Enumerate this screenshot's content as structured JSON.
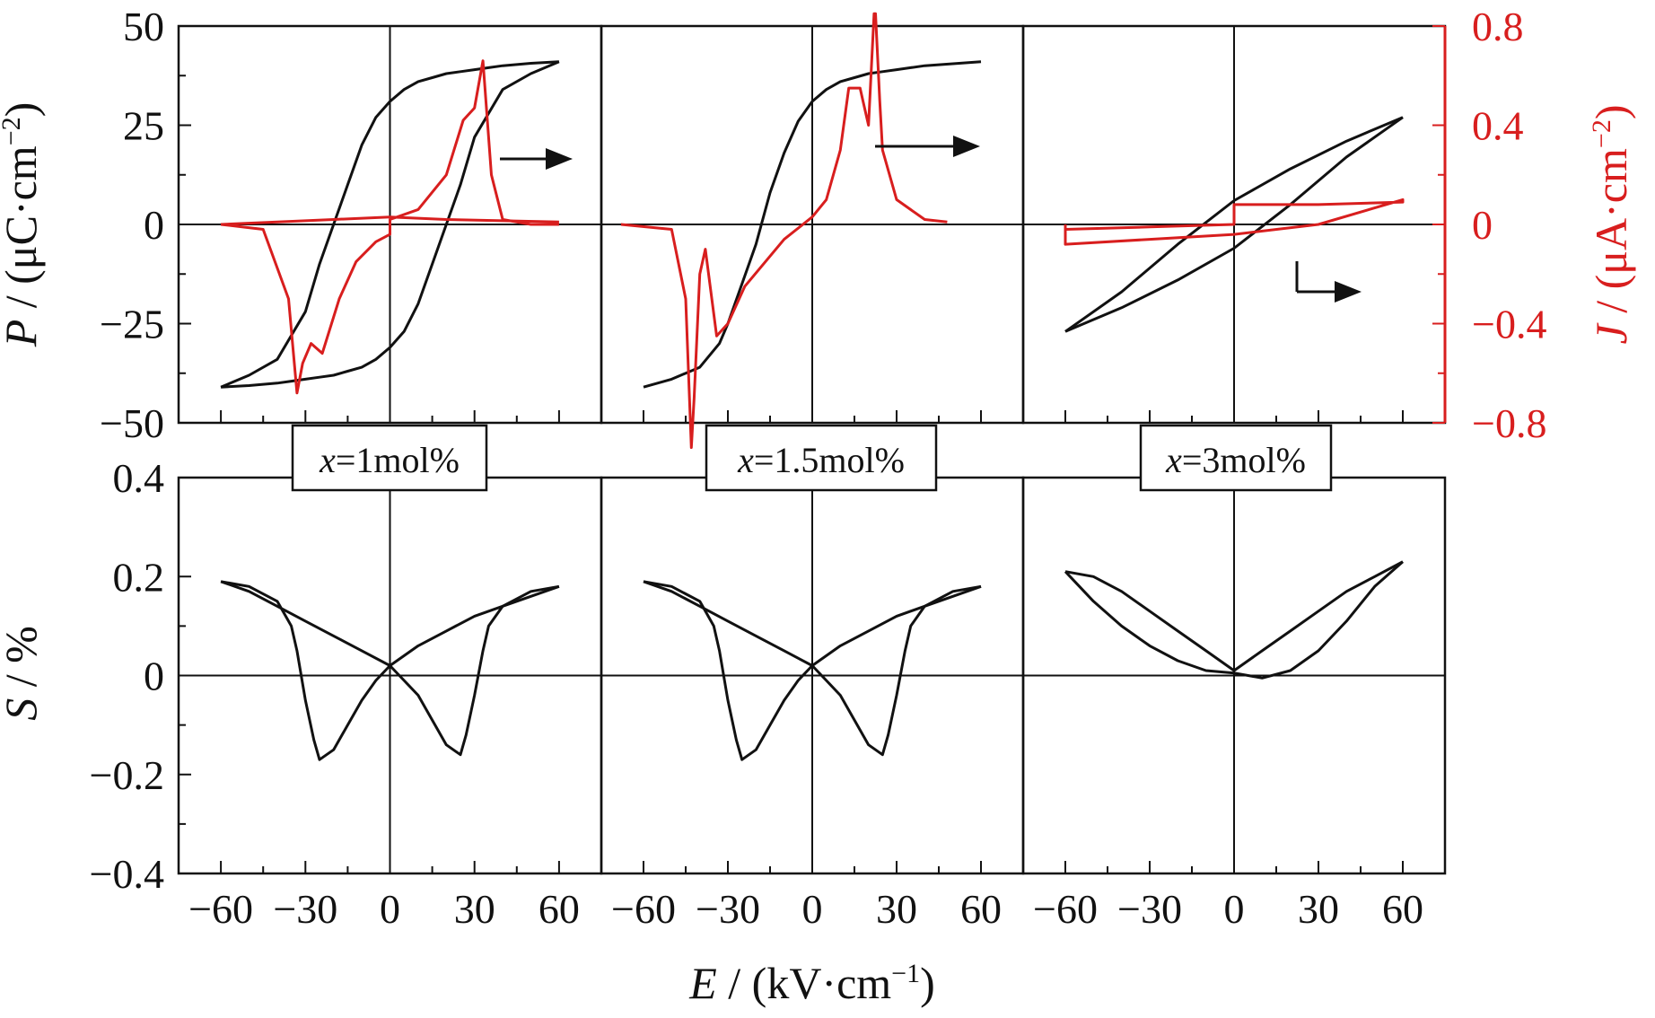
{
  "colors": {
    "black_axis": "#111111",
    "red_axis": "#d81e1e"
  },
  "labels": {
    "p_axis": {
      "symbol": "P",
      "unit": " / (μC·cm",
      "exp": "−2",
      "close": ")"
    },
    "j_axis": {
      "symbol": "J",
      "unit": " / (μA·cm",
      "exp": "−2",
      "close": ")"
    },
    "s_axis": {
      "symbol": "S",
      "unit": " / %"
    },
    "e_axis": {
      "symbol": "E",
      "unit": " / (kV·cm",
      "exp": "−1",
      "close": ")"
    }
  },
  "panel_labels": [
    {
      "var": "x",
      "text": "=1mol%"
    },
    {
      "var": "x",
      "text": "=1.5mol%"
    },
    {
      "var": "x",
      "text": "=3mol%"
    }
  ],
  "ticks": {
    "p": [
      "50",
      "25",
      "0",
      "−25",
      "−50"
    ],
    "j": [
      "0.8",
      "0.4",
      "0",
      "−0.4",
      "−0.8"
    ],
    "s": [
      "0.4",
      "0.2",
      "0",
      "−0.2",
      "−0.4"
    ],
    "e": [
      "−60",
      "−30",
      "0",
      "30",
      "60"
    ]
  },
  "chart_data": [
    {
      "type": "line",
      "panel": "x=1mol%",
      "xlabel": "E / (kV·cm−1)",
      "ylabel": "P / (μC·cm−2)",
      "ylabel_right": "J / (μA·cm−2)",
      "xlim": [
        -75,
        75
      ],
      "ylim": [
        -50,
        50
      ],
      "ylim_right": [
        -0.8,
        0.8
      ],
      "series": [
        {
          "axis": "left",
          "x": [
            -60,
            -50,
            -40,
            -30,
            -25,
            -20,
            -15,
            -10,
            -5,
            0,
            5,
            10,
            15,
            20,
            25,
            30,
            35,
            40,
            45,
            50,
            60
          ],
          "y": [
            -41,
            -38,
            -34,
            -22,
            -10,
            0,
            10,
            20,
            27,
            31,
            34,
            36,
            37,
            38,
            38.5,
            39,
            39.5,
            40,
            40.3,
            40.6,
            41
          ]
        },
        {
          "axis": "left",
          "x": [
            60,
            50,
            40,
            30,
            25,
            20,
            15,
            10,
            5,
            0,
            -5,
            -10,
            -15,
            -20,
            -25,
            -30,
            -35,
            -40,
            -45,
            -50,
            -60
          ],
          "y": [
            41,
            38,
            34,
            22,
            10,
            0,
            -10,
            -20,
            -27,
            -31,
            -34,
            -36,
            -37,
            -38,
            -38.5,
            -39,
            -39.5,
            -40,
            -40.3,
            -40.6,
            -41
          ]
        },
        {
          "axis": "right",
          "x": [
            -60,
            -45,
            -36,
            -33,
            -31,
            -28,
            -24,
            -18,
            -12,
            -5,
            0,
            0,
            10,
            20,
            26,
            30,
            33,
            36,
            40,
            50,
            60
          ],
          "y": [
            0,
            -0.02,
            -0.3,
            -0.68,
            -0.56,
            -0.48,
            -0.52,
            -0.3,
            -0.15,
            -0.07,
            -0.04,
            0.02,
            0.06,
            0.2,
            0.42,
            0.47,
            0.66,
            0.2,
            0.02,
            0,
            0
          ]
        },
        {
          "axis": "right",
          "x": [
            60,
            40,
            20,
            0,
            -20,
            -40,
            -60
          ],
          "y": [
            0.01,
            0.015,
            0.02,
            0.03,
            0.02,
            0.01,
            0
          ]
        }
      ]
    },
    {
      "type": "line",
      "panel": "x=1.5mol%",
      "xlim": [
        -75,
        75
      ],
      "ylim": [
        -50,
        50
      ],
      "ylim_right": [
        -0.8,
        0.8
      ],
      "series": [
        {
          "axis": "left",
          "x": [
            -60,
            -50,
            -40,
            -33,
            -30,
            -25,
            -20,
            -15,
            -10,
            -5,
            0,
            5,
            10,
            15,
            20,
            25,
            30,
            35,
            40,
            50,
            60
          ],
          "y": [
            -41,
            -39,
            -36,
            -30,
            -25,
            -15,
            -5,
            8,
            18,
            26,
            31,
            34,
            36,
            37,
            38,
            38.5,
            39,
            39.5,
            40,
            40.5,
            41
          ]
        },
        {
          "axis": "right",
          "x": [
            -68,
            -50,
            -45,
            -43,
            -42,
            -40,
            -38,
            -34,
            -30,
            -24,
            -10,
            0,
            5,
            10,
            13,
            17,
            18,
            20,
            22,
            22.5,
            24,
            25,
            30,
            40,
            48
          ],
          "y": [
            0,
            -0.02,
            -0.3,
            -0.9,
            -0.7,
            -0.2,
            -0.1,
            -0.45,
            -0.4,
            -0.25,
            -0.06,
            0.03,
            0.1,
            0.3,
            0.55,
            0.55,
            0.5,
            0.4,
            0.85,
            0.85,
            0.5,
            0.3,
            0.1,
            0.02,
            0.01
          ]
        }
      ]
    },
    {
      "type": "line",
      "panel": "x=3mol%",
      "xlim": [
        -75,
        75
      ],
      "ylim": [
        -50,
        50
      ],
      "ylim_right": [
        -0.8,
        0.8
      ],
      "series": [
        {
          "axis": "left",
          "x": [
            -60,
            -40,
            -20,
            0,
            20,
            40,
            60
          ],
          "y": [
            -27,
            -21,
            -14,
            -6,
            5,
            17,
            27
          ]
        },
        {
          "axis": "left",
          "x": [
            60,
            40,
            20,
            0,
            -20,
            -40,
            -60
          ],
          "y": [
            27,
            21,
            14,
            6,
            -5,
            -17,
            -27
          ]
        },
        {
          "axis": "right",
          "x": [
            -60,
            -30,
            0,
            0,
            30,
            60,
            60,
            30,
            0,
            -30,
            -60,
            -60
          ],
          "y": [
            -0.02,
            -0.01,
            0,
            0.08,
            0.08,
            0.09,
            0.1,
            0,
            -0.04,
            -0.06,
            -0.08,
            0
          ]
        }
      ]
    },
    {
      "type": "line",
      "panel": "x=1mol%",
      "xlabel": "E / (kV·cm−1)",
      "ylabel": "S / %",
      "xlim": [
        -75,
        75
      ],
      "ylim": [
        -0.4,
        0.4
      ],
      "series": [
        {
          "x": [
            -60,
            -50,
            -40,
            -35,
            -33,
            -30,
            -27,
            -25,
            -20,
            -15,
            -10,
            -5,
            0,
            10,
            20,
            30,
            40,
            50,
            60
          ],
          "y": [
            0.19,
            0.18,
            0.15,
            0.1,
            0.05,
            -0.05,
            -0.13,
            -0.17,
            -0.15,
            -0.1,
            -0.05,
            -0.01,
            0.02,
            0.06,
            0.09,
            0.12,
            0.14,
            0.16,
            0.18
          ]
        },
        {
          "x": [
            60,
            50,
            40,
            35,
            33,
            30,
            27,
            25,
            20,
            15,
            10,
            5,
            0,
            -10,
            -20,
            -30,
            -40,
            -50,
            -60
          ],
          "y": [
            0.18,
            0.17,
            0.14,
            0.1,
            0.05,
            -0.04,
            -0.12,
            -0.16,
            -0.14,
            -0.09,
            -0.04,
            -0.01,
            0.02,
            0.05,
            0.08,
            0.11,
            0.14,
            0.17,
            0.19
          ]
        }
      ]
    },
    {
      "type": "line",
      "panel": "x=1.5mol%",
      "xlim": [
        -75,
        75
      ],
      "ylim": [
        -0.4,
        0.4
      ],
      "series": [
        {
          "x": [
            -60,
            -50,
            -40,
            -35,
            -33,
            -30,
            -27,
            -25,
            -20,
            -15,
            -10,
            -5,
            0,
            10,
            20,
            30,
            40,
            50,
            60
          ],
          "y": [
            0.19,
            0.18,
            0.15,
            0.1,
            0.05,
            -0.05,
            -0.13,
            -0.17,
            -0.15,
            -0.1,
            -0.05,
            -0.01,
            0.02,
            0.06,
            0.09,
            0.12,
            0.14,
            0.16,
            0.18
          ]
        },
        {
          "x": [
            60,
            50,
            40,
            35,
            33,
            30,
            27,
            25,
            20,
            15,
            10,
            5,
            0,
            -10,
            -20,
            -30,
            -40,
            -50,
            -60
          ],
          "y": [
            0.18,
            0.17,
            0.14,
            0.1,
            0.05,
            -0.04,
            -0.12,
            -0.16,
            -0.14,
            -0.09,
            -0.04,
            -0.01,
            0.02,
            0.05,
            0.08,
            0.11,
            0.14,
            0.17,
            0.19
          ]
        }
      ]
    },
    {
      "type": "line",
      "panel": "x=3mol%",
      "xlim": [
        -75,
        75
      ],
      "ylim": [
        -0.4,
        0.4
      ],
      "series": [
        {
          "x": [
            -60,
            -50,
            -40,
            -30,
            -20,
            -10,
            0,
            10,
            20,
            30,
            40,
            50,
            60
          ],
          "y": [
            0.21,
            0.2,
            0.17,
            0.13,
            0.09,
            0.05,
            0.01,
            0.05,
            0.09,
            0.13,
            0.17,
            0.2,
            0.23
          ]
        },
        {
          "x": [
            60,
            50,
            40,
            30,
            20,
            10,
            0,
            -10,
            -20,
            -30,
            -40,
            -50,
            -60
          ],
          "y": [
            0.23,
            0.18,
            0.11,
            0.05,
            0.01,
            -0.005,
            0.005,
            0.01,
            0.03,
            0.06,
            0.1,
            0.15,
            0.21
          ]
        }
      ]
    }
  ]
}
